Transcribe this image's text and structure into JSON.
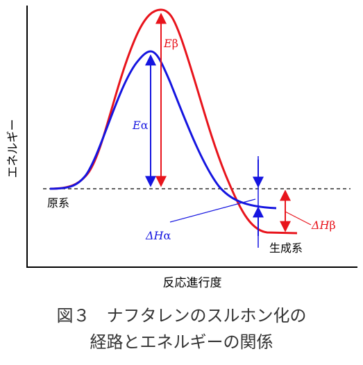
{
  "diagram": {
    "y_axis_label": "エネルギー",
    "x_axis_label": "反応進行度",
    "reactant_label": "原系",
    "product_label": "生成系",
    "e_beta": {
      "sym": "E",
      "sub": "β",
      "color": "#e8141c"
    },
    "e_alpha": {
      "sym": "E",
      "sub": "α",
      "color": "#1515e0"
    },
    "dh_alpha": {
      "sym": "ΔH",
      "sub": "α",
      "color": "#1515e0"
    },
    "dh_beta": {
      "sym": "ΔH",
      "sub": "β",
      "color": "#e8141c"
    }
  },
  "caption": {
    "line1": "図３　ナフタレンのスルホン化の",
    "line2": "経路とエネルギーの関係"
  }
}
